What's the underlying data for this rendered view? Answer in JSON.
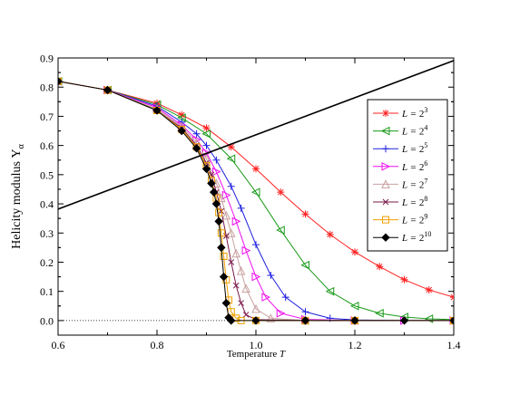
{
  "chart_data": {
    "type": "line",
    "xlabel": "Temperature",
    "xlabel_var": "T",
    "ylabel": "Helicity modulus",
    "ylabel_sym": "Υ",
    "ylabel_sub": "α",
    "xlim": [
      0.6,
      1.4
    ],
    "ylim": [
      -0.05,
      0.9
    ],
    "xticks": [
      "0.6",
      "0.8",
      "1.0",
      "1.2",
      "1.4"
    ],
    "yticks": [
      "0.0",
      "0.1",
      "0.2",
      "0.3",
      "0.4",
      "0.5",
      "0.6",
      "0.7",
      "0.8",
      "0.9"
    ],
    "legend_position": "right",
    "reference_line": {
      "x": [
        0.6,
        1.4
      ],
      "y": [
        0.382,
        0.891
      ],
      "color": "#000000"
    },
    "zero_line": {
      "y": 0.0,
      "style": "dotted"
    },
    "series": [
      {
        "name": "L = 2^3",
        "L": "L =",
        "base": "2",
        "exp": "3",
        "color": "#ff2020",
        "marker": "star",
        "x": [
          0.6,
          0.7,
          0.8,
          0.85,
          0.9,
          0.95,
          1.0,
          1.05,
          1.1,
          1.15,
          1.2,
          1.25,
          1.3,
          1.35,
          1.4
        ],
        "y": [
          0.82,
          0.79,
          0.745,
          0.705,
          0.66,
          0.595,
          0.52,
          0.44,
          0.365,
          0.295,
          0.235,
          0.185,
          0.14,
          0.105,
          0.08
        ]
      },
      {
        "name": "L = 2^4",
        "L": "L =",
        "base": "2",
        "exp": "4",
        "color": "#1a9a1a",
        "marker": "triangle-left",
        "x": [
          0.6,
          0.7,
          0.8,
          0.85,
          0.9,
          0.95,
          1.0,
          1.05,
          1.1,
          1.15,
          1.2,
          1.25,
          1.3,
          1.35,
          1.4
        ],
        "y": [
          0.82,
          0.79,
          0.74,
          0.695,
          0.64,
          0.555,
          0.44,
          0.31,
          0.19,
          0.1,
          0.05,
          0.025,
          0.012,
          0.006,
          0.003
        ]
      },
      {
        "name": "L = 2^5",
        "L": "L =",
        "base": "2",
        "exp": "5",
        "color": "#2020e0",
        "marker": "plus",
        "x": [
          0.6,
          0.7,
          0.8,
          0.85,
          0.88,
          0.9,
          0.92,
          0.95,
          0.97,
          1.0,
          1.03,
          1.06,
          1.1,
          1.15,
          1.2,
          1.3,
          1.4
        ],
        "y": [
          0.82,
          0.79,
          0.735,
          0.68,
          0.64,
          0.6,
          0.55,
          0.46,
          0.385,
          0.26,
          0.155,
          0.08,
          0.03,
          0.008,
          0.002,
          0.0,
          0.0
        ]
      },
      {
        "name": "L = 2^6",
        "L": "L =",
        "base": "2",
        "exp": "6",
        "color": "#ee10ee",
        "marker": "triangle-right",
        "x": [
          0.6,
          0.7,
          0.8,
          0.85,
          0.88,
          0.9,
          0.92,
          0.94,
          0.96,
          0.98,
          1.0,
          1.02,
          1.05,
          1.1,
          1.2,
          1.3,
          1.4
        ],
        "y": [
          0.82,
          0.79,
          0.73,
          0.67,
          0.62,
          0.575,
          0.51,
          0.43,
          0.34,
          0.24,
          0.15,
          0.08,
          0.025,
          0.004,
          0.0,
          0.0,
          0.0
        ]
      },
      {
        "name": "L = 2^7",
        "L": "L =",
        "base": "2",
        "exp": "7",
        "color": "#c8a0a0",
        "marker": "triangle-up",
        "x": [
          0.6,
          0.7,
          0.8,
          0.85,
          0.88,
          0.9,
          0.92,
          0.93,
          0.94,
          0.95,
          0.96,
          0.97,
          0.98,
          1.0,
          1.03,
          1.1,
          1.2,
          1.4
        ],
        "y": [
          0.82,
          0.79,
          0.725,
          0.665,
          0.61,
          0.555,
          0.47,
          0.42,
          0.36,
          0.3,
          0.23,
          0.17,
          0.11,
          0.04,
          0.008,
          0.0,
          0.0,
          0.0
        ]
      },
      {
        "name": "L = 2^8",
        "L": "L =",
        "base": "2",
        "exp": "8",
        "color": "#7a1a4a",
        "marker": "x",
        "x": [
          0.6,
          0.7,
          0.8,
          0.85,
          0.88,
          0.9,
          0.91,
          0.92,
          0.93,
          0.94,
          0.95,
          0.96,
          0.97,
          0.98,
          1.0,
          1.1,
          1.2,
          1.4
        ],
        "y": [
          0.82,
          0.79,
          0.72,
          0.66,
          0.6,
          0.54,
          0.5,
          0.44,
          0.375,
          0.29,
          0.2,
          0.12,
          0.06,
          0.02,
          0.003,
          0.0,
          0.0,
          0.0
        ]
      },
      {
        "name": "L = 2^9",
        "L": "L =",
        "base": "2",
        "exp": "9",
        "color": "#f0a000",
        "marker": "square",
        "x": [
          0.6,
          0.7,
          0.8,
          0.85,
          0.88,
          0.9,
          0.91,
          0.92,
          0.925,
          0.93,
          0.935,
          0.94,
          0.945,
          0.95,
          0.96,
          0.97,
          1.0,
          1.1,
          1.2,
          1.4
        ],
        "y": [
          0.82,
          0.79,
          0.72,
          0.655,
          0.595,
          0.53,
          0.48,
          0.42,
          0.37,
          0.3,
          0.22,
          0.14,
          0.07,
          0.03,
          0.008,
          0.0,
          0.0,
          0.0,
          0.0,
          0.0
        ]
      },
      {
        "name": "L = 2^10",
        "L": "L =",
        "base": "2",
        "exp": "10",
        "color": "#000000",
        "marker": "diamond",
        "x": [
          0.6,
          0.7,
          0.8,
          0.85,
          0.88,
          0.9,
          0.91,
          0.915,
          0.92,
          0.925,
          0.93,
          0.935,
          0.94,
          0.945,
          0.95,
          1.0,
          1.1,
          1.2,
          1.3,
          1.4
        ],
        "y": [
          0.82,
          0.79,
          0.72,
          0.65,
          0.59,
          0.52,
          0.47,
          0.44,
          0.4,
          0.34,
          0.25,
          0.15,
          0.06,
          0.01,
          0.0,
          0.0,
          0.0,
          0.0,
          0.0,
          0.0
        ]
      }
    ]
  }
}
